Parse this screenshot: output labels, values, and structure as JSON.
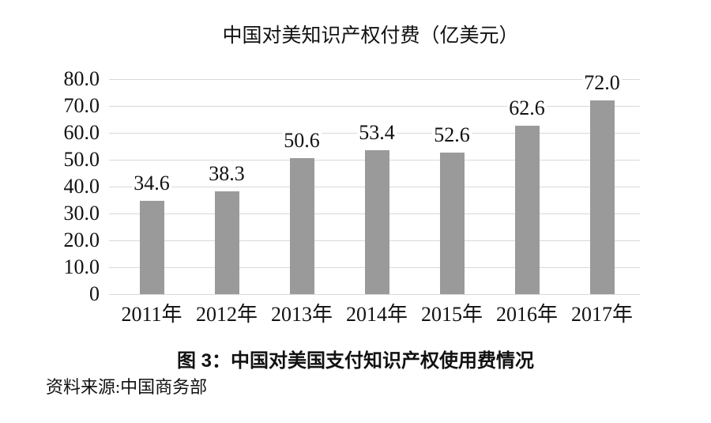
{
  "chart_data": {
    "type": "bar",
    "title": "中国对美知识产权付费（亿美元）",
    "categories": [
      "2011年",
      "2012年",
      "2013年",
      "2014年",
      "2015年",
      "2016年",
      "2017年"
    ],
    "values": [
      34.6,
      38.3,
      50.6,
      53.4,
      52.6,
      62.6,
      72.0
    ],
    "value_labels": [
      "34.6",
      "38.3",
      "50.6",
      "53.4",
      "52.6",
      "62.6",
      "72.0"
    ],
    "ylabel": "",
    "xlabel": "",
    "ylim": [
      0,
      80
    ],
    "ytick_step": 10,
    "ytick_labels": [
      "80.0",
      "70.0",
      "60.0",
      "50.0",
      "40.0",
      "30.0",
      "20.0",
      "10.0",
      "0"
    ],
    "grid": true,
    "legend": false,
    "bar_color": "#9a9a9a",
    "gridline_color": "#d9d9d9"
  },
  "caption": "图 3：中国对美国支付知识产权使用费情况",
  "source_note": "资料来源:中国商务部"
}
